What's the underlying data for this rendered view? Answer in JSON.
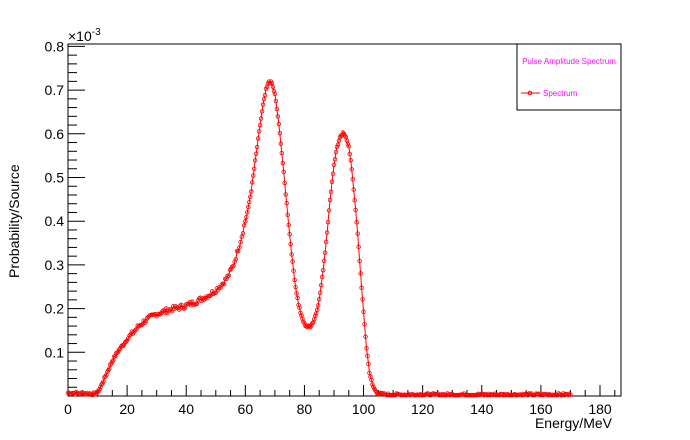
{
  "chart_data": {
    "type": "line",
    "title": "",
    "xlabel": "Energy/MeV",
    "ylabel": "Probability/Source",
    "y_exponent": "×10",
    "y_exponent_power": "-3",
    "xlim": [
      0,
      187
    ],
    "ylim": [
      0,
      0.8
    ],
    "x_ticks": [
      "0",
      "20",
      "40",
      "60",
      "80",
      "100",
      "120",
      "140",
      "160",
      "180"
    ],
    "y_ticks": [
      "0.1",
      "0.2",
      "0.3",
      "0.4",
      "0.5",
      "0.6",
      "0.7",
      "0.8"
    ],
    "grid": false,
    "legend": {
      "title": "Pulse Amplitude Spectrum",
      "entries": [
        "Spectrum"
      ],
      "position": "top-right"
    },
    "series": [
      {
        "name": "Spectrum",
        "color": "#ff0000",
        "marker": "open-circle",
        "x": [
          0,
          2,
          4,
          6,
          8,
          9,
          10,
          11,
          12,
          13,
          14,
          15,
          16,
          17,
          18,
          19,
          20,
          22,
          24,
          26,
          28,
          30,
          32,
          34,
          36,
          38,
          40,
          42,
          44,
          46,
          48,
          50,
          52,
          54,
          56,
          58,
          60,
          61,
          62,
          63,
          64,
          65,
          66,
          67,
          68,
          69,
          70,
          71,
          72,
          73,
          74,
          75,
          76,
          77,
          78,
          79,
          80,
          81,
          82,
          83,
          84,
          85,
          86,
          87,
          88,
          89,
          90,
          91,
          92,
          93,
          94,
          95,
          96,
          97,
          98,
          99,
          100,
          101,
          102,
          103,
          104,
          105,
          106,
          108,
          110,
          115,
          120,
          130,
          140,
          150,
          160,
          170
        ],
        "values": [
          0.007,
          0.007,
          0.006,
          0.006,
          0.005,
          0.005,
          0.008,
          0.02,
          0.035,
          0.05,
          0.065,
          0.08,
          0.092,
          0.103,
          0.112,
          0.12,
          0.13,
          0.145,
          0.16,
          0.172,
          0.18,
          0.188,
          0.192,
          0.197,
          0.2,
          0.203,
          0.207,
          0.212,
          0.218,
          0.225,
          0.232,
          0.242,
          0.255,
          0.272,
          0.3,
          0.345,
          0.4,
          0.43,
          0.47,
          0.52,
          0.57,
          0.62,
          0.665,
          0.7,
          0.72,
          0.715,
          0.69,
          0.64,
          0.58,
          0.51,
          0.44,
          0.37,
          0.305,
          0.25,
          0.21,
          0.182,
          0.165,
          0.158,
          0.16,
          0.17,
          0.19,
          0.22,
          0.27,
          0.33,
          0.4,
          0.47,
          0.53,
          0.57,
          0.59,
          0.6,
          0.595,
          0.57,
          0.52,
          0.45,
          0.37,
          0.28,
          0.19,
          0.11,
          0.055,
          0.025,
          0.012,
          0.006,
          0.004,
          0.003,
          0.003,
          0.003,
          0.003,
          0.003,
          0.003,
          0.003,
          0.003,
          0.003
        ]
      }
    ]
  }
}
